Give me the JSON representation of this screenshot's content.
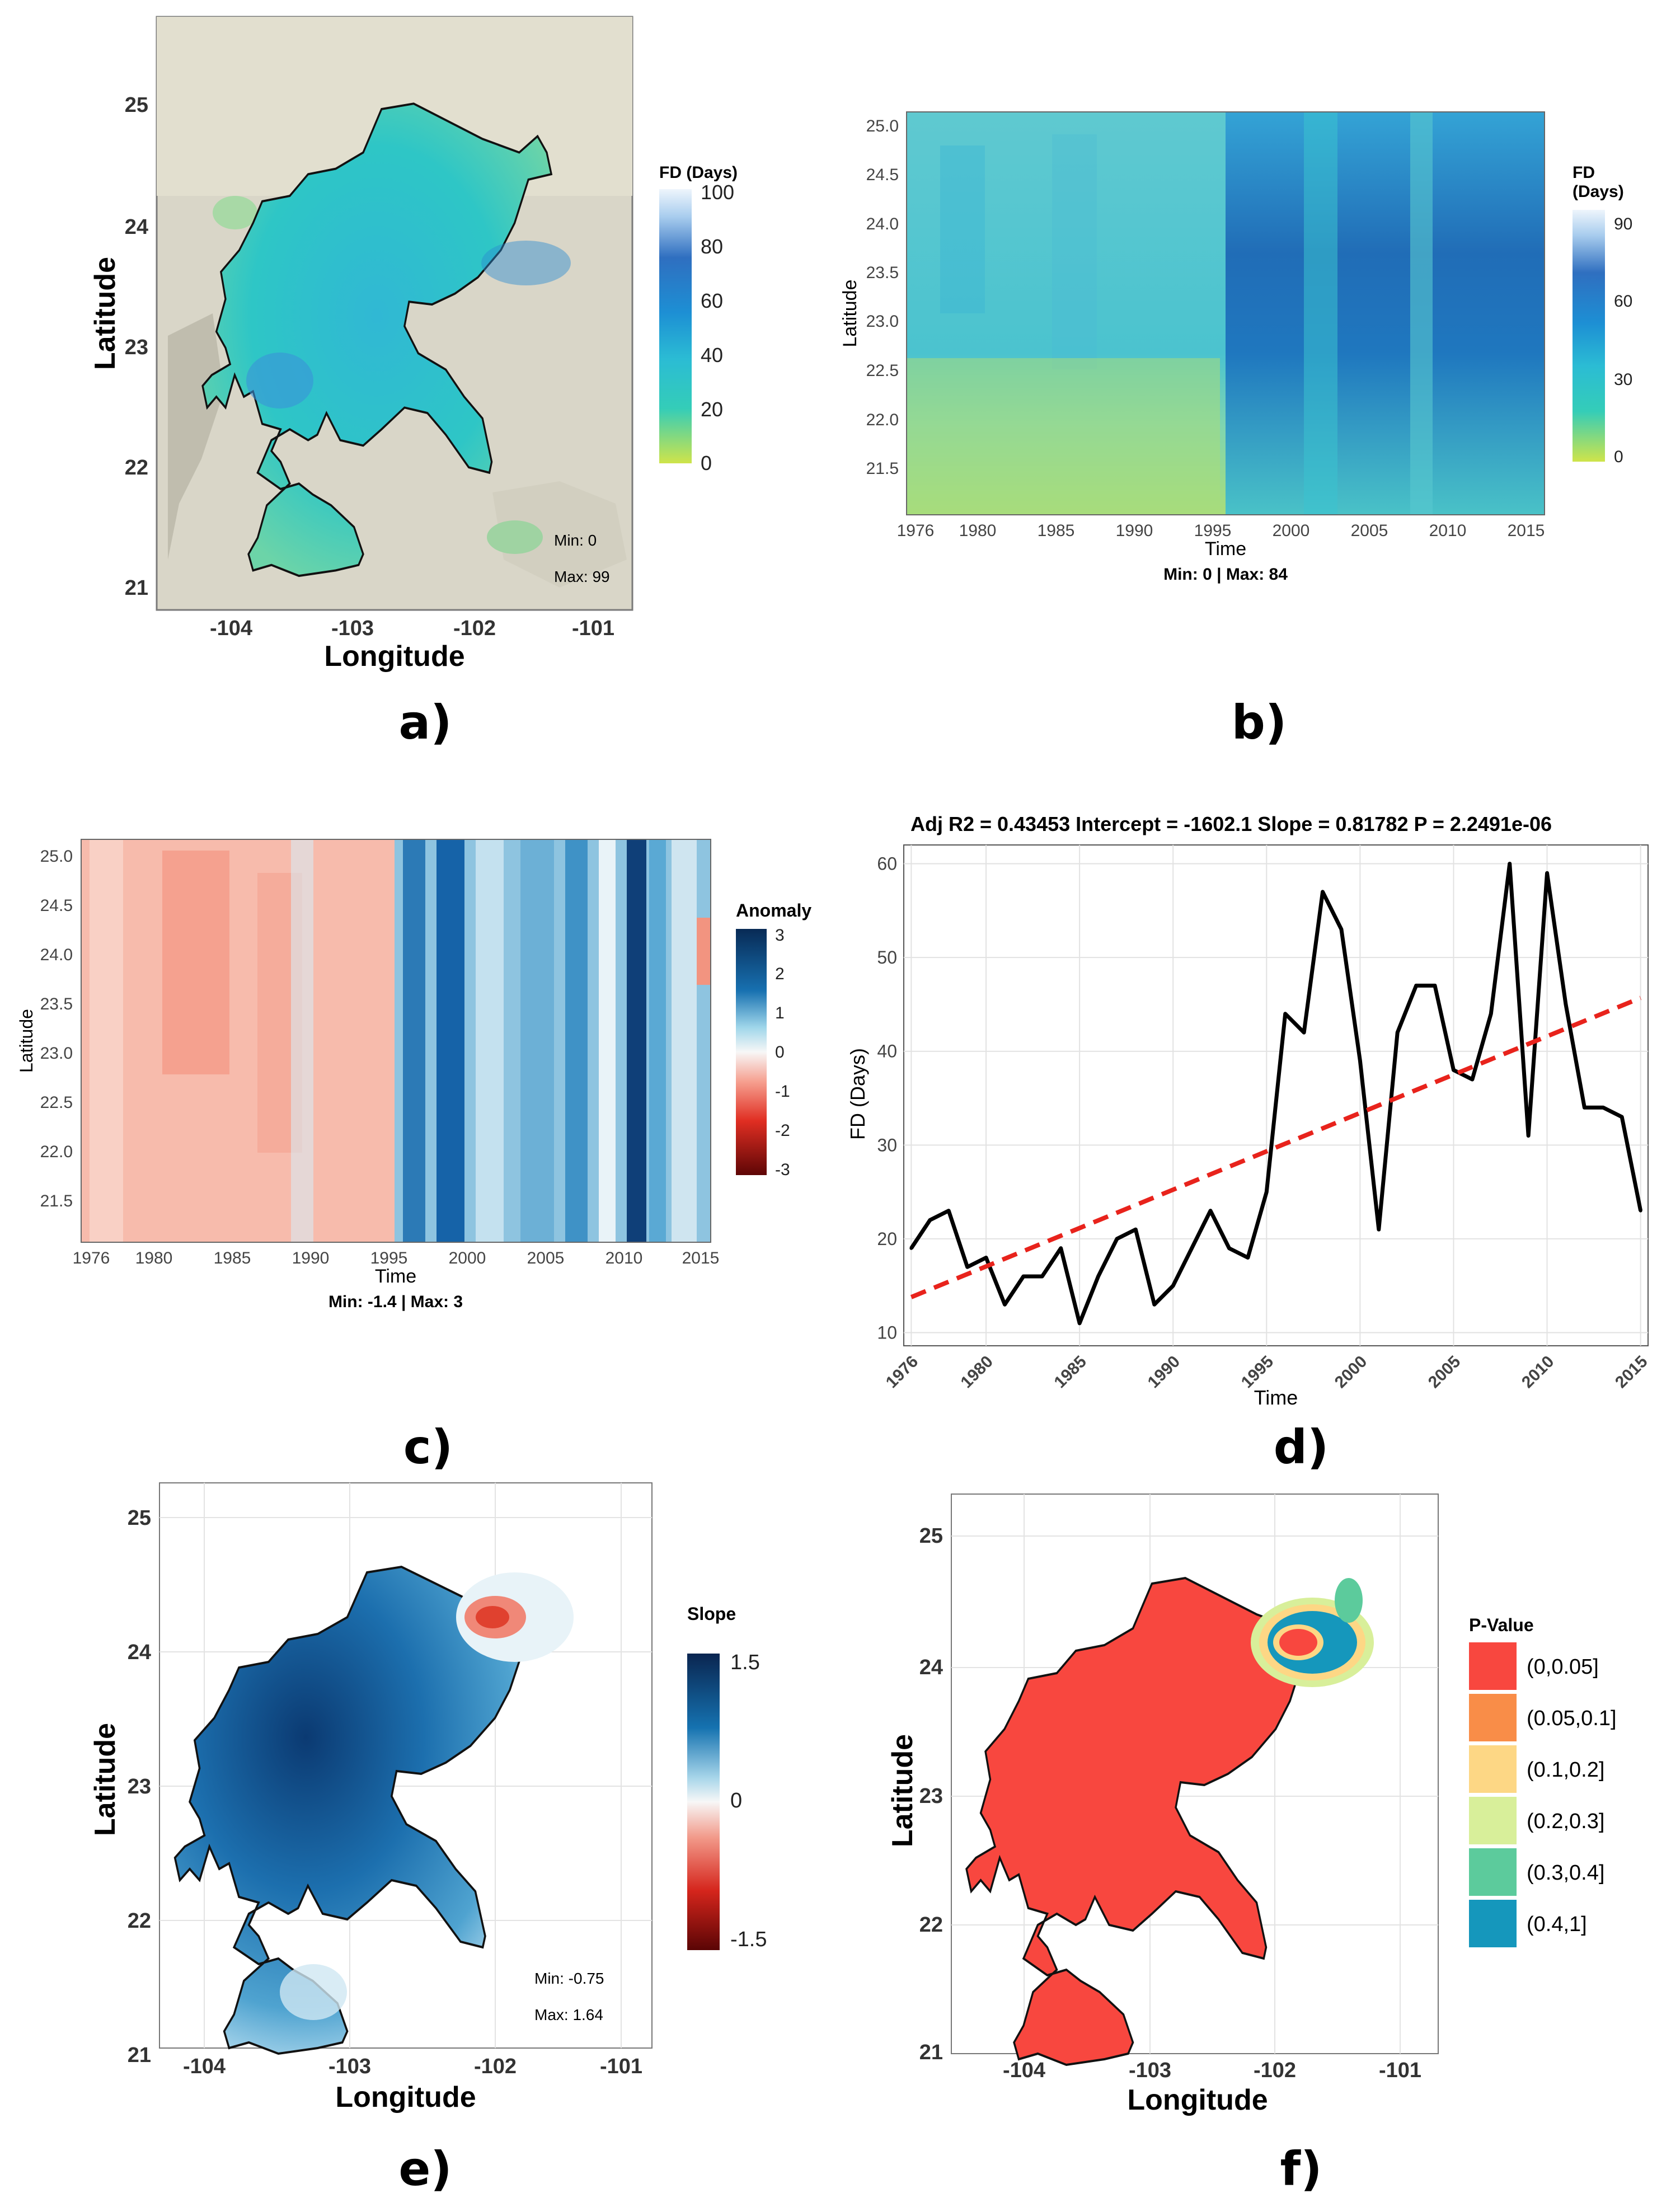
{
  "panels": {
    "a": {
      "tag": "a)",
      "xlabel": "Longitude",
      "ylabel": "Latitude",
      "xticks": [
        "-104",
        "-103",
        "-102",
        "-101"
      ],
      "yticks": [
        "25",
        "24",
        "23",
        "22",
        "21"
      ],
      "legend_title": "FD (Days)",
      "legend_ticks": [
        "100",
        "80",
        "60",
        "40",
        "20",
        "0"
      ],
      "min_text": "Min: 0",
      "max_text": "Max: 99"
    },
    "b": {
      "tag": "b)",
      "xlabel": "Time",
      "ylabel": "Latitude",
      "xticks": [
        "1976",
        "1980",
        "1985",
        "1990",
        "1995",
        "2000",
        "2005",
        "2010",
        "2015"
      ],
      "yticks": [
        "25.0",
        "24.5",
        "24.0",
        "23.5",
        "23.0",
        "22.5",
        "22.0",
        "21.5"
      ],
      "legend_title_1": "FD",
      "legend_title_2": "(Days)",
      "legend_ticks": [
        "90",
        "60",
        "30",
        "0"
      ],
      "caption": "Min: 0 | Max: 84"
    },
    "c": {
      "tag": "c)",
      "xlabel": "Time",
      "ylabel": "Latitude",
      "xticks": [
        "1976",
        "1980",
        "1985",
        "1990",
        "1995",
        "2000",
        "2005",
        "2010",
        "2015"
      ],
      "yticks": [
        "25.0",
        "24.5",
        "24.0",
        "23.5",
        "23.0",
        "22.5",
        "22.0",
        "21.5"
      ],
      "legend_title": "Anomaly",
      "legend_ticks": [
        "3",
        "2",
        "1",
        "0",
        "-1",
        "-2",
        "-3"
      ],
      "caption": "Min: -1.4 | Max: 3"
    },
    "d": {
      "tag": "d)",
      "title": "Adj R2 =  0.43453 Intercept = -1602.1  Slope = 0.81782  P = 2.2491e-06",
      "xlabel": "Time",
      "ylabel": "FD (Days)",
      "xticks": [
        "1976",
        "1980",
        "1985",
        "1990",
        "1995",
        "2000",
        "2005",
        "2010",
        "2015"
      ],
      "yticks": [
        "60",
        "50",
        "40",
        "30",
        "20",
        "10"
      ]
    },
    "e": {
      "tag": "e)",
      "xlabel": "Longitude",
      "ylabel": "Latitude",
      "xticks": [
        "-104",
        "-103",
        "-102",
        "-101"
      ],
      "yticks": [
        "25",
        "24",
        "23",
        "22",
        "21"
      ],
      "legend_title": "Slope",
      "legend_ticks": [
        "1.5",
        "0",
        "-1.5"
      ],
      "min_text": "Min: -0.75",
      "max_text": "Max: 1.64"
    },
    "f": {
      "tag": "f)",
      "xlabel": "Longitude",
      "ylabel": "Latitude",
      "xticks": [
        "-104",
        "-103",
        "-102",
        "-101"
      ],
      "yticks": [
        "25",
        "24",
        "23",
        "22",
        "21"
      ],
      "legend_title": "P-Value",
      "legend_items": [
        {
          "label": "(0,0.05]",
          "color": "#f8473f"
        },
        {
          "label": "(0.05,0.1]",
          "color": "#f98d48"
        },
        {
          "label": "(0.1,0.2]",
          "color": "#fdd785"
        },
        {
          "label": "(0.2,0.3]",
          "color": "#d8ef9a"
        },
        {
          "label": "(0.3,0.4]",
          "color": "#5ccb9c"
        },
        {
          "label": "(0.4,1]",
          "color": "#1597bc"
        }
      ]
    }
  },
  "chart_data": [
    {
      "panel": "d",
      "type": "line",
      "title": "Adj R2 =  0.43453 Intercept = -1602.1  Slope = 0.81782  P = 2.2491e-06",
      "xlabel": "Time",
      "ylabel": "FD (Days)",
      "xlim": [
        1975.6,
        2015.4
      ],
      "ylim": [
        8.6,
        62
      ],
      "series": [
        {
          "name": "FD",
          "x": [
            1976,
            1977,
            1978,
            1979,
            1980,
            1981,
            1982,
            1983,
            1984,
            1985,
            1986,
            1987,
            1988,
            1989,
            1990,
            1991,
            1992,
            1993,
            1994,
            1995,
            1996,
            1997,
            1998,
            1999,
            2000,
            2001,
            2002,
            2003,
            2004,
            2005,
            2006,
            2007,
            2008,
            2009,
            2010,
            2011,
            2012,
            2013,
            2014,
            2015
          ],
          "values": [
            19,
            22,
            23,
            17,
            18,
            13,
            16,
            16,
            19,
            11,
            16,
            20,
            21,
            13,
            15,
            19,
            23,
            19,
            18,
            25,
            44,
            42,
            57,
            53,
            39,
            21,
            42,
            47,
            47,
            38,
            37,
            44,
            60,
            31,
            59,
            45,
            34,
            34,
            33,
            23
          ]
        },
        {
          "name": "Trend",
          "style": "dashed",
          "color": "#e8231c",
          "x": [
            1976,
            2015
          ],
          "values": [
            13.79,
            45.69
          ]
        }
      ]
    },
    {
      "panel": "b",
      "type": "heatmap",
      "x_range": [
        1976,
        2015
      ],
      "y_range": [
        21.1,
        25.1
      ],
      "legend_range": [
        0,
        90
      ],
      "min": 0,
      "max": 84
    },
    {
      "panel": "c",
      "type": "heatmap",
      "x_range": [
        1976,
        2015
      ],
      "y_range": [
        21.1,
        25.1
      ],
      "legend_range": [
        -3,
        3
      ],
      "min": -1.4,
      "max": 3
    }
  ],
  "colors": {
    "fd_scale": [
      "#c5e04a",
      "#2ec5c2",
      "#1a86d1",
      "#1560a8",
      "#e8f1fb"
    ],
    "anomaly_scale": [
      "#6b0a0a",
      "#e8352a",
      "#f7f7f7",
      "#1b86c1",
      "#0a2f5e"
    ],
    "trend_line": "#e8231c"
  }
}
